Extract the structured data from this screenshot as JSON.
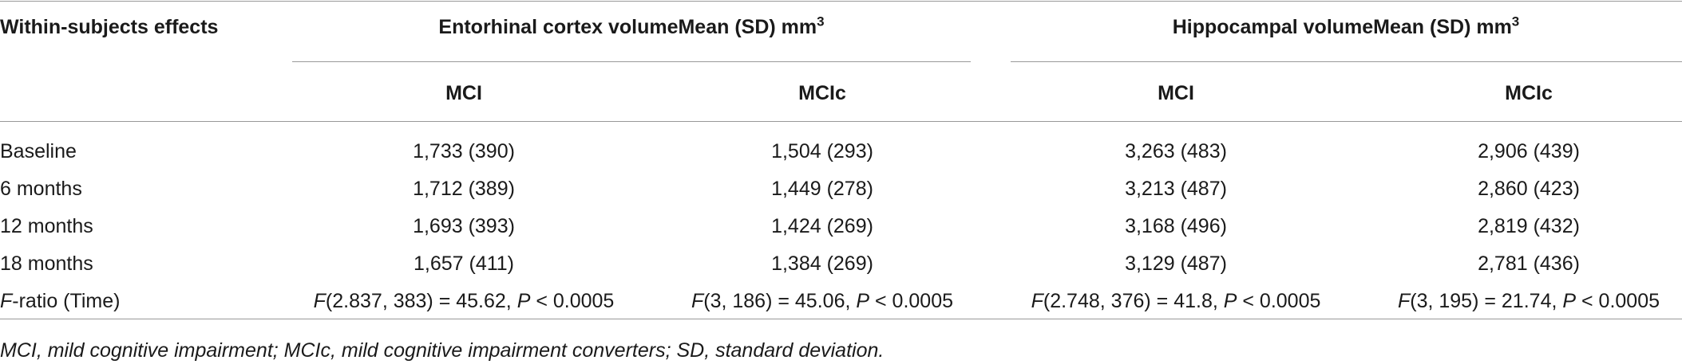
{
  "header": {
    "stub": "Within-subjects effects",
    "groups": [
      {
        "title": "Entorhinal cortex volumeMean (SD) mm",
        "sup": "3",
        "columns": [
          "MCI",
          "MCIc"
        ]
      },
      {
        "title": "Hippocampal volumeMean (SD) mm",
        "sup": "3",
        "columns": [
          "MCI",
          "MCIc"
        ]
      }
    ]
  },
  "table": {
    "rows": [
      {
        "label": [
          "Baseline"
        ],
        "cells": [
          [
            "1,733 (390)"
          ],
          [
            "1,504 (293)"
          ],
          [
            "3,263 (483)"
          ],
          [
            "2,906 (439)"
          ]
        ]
      },
      {
        "label": [
          "6 months"
        ],
        "cells": [
          [
            "1,712 (389)"
          ],
          [
            "1,449 (278)"
          ],
          [
            "3,213 (487)"
          ],
          [
            "2,860 (423)"
          ]
        ]
      },
      {
        "label": [
          "12 months"
        ],
        "cells": [
          [
            "1,693 (393)"
          ],
          [
            "1,424 (269)"
          ],
          [
            "3,168 (496)"
          ],
          [
            "2,819 (432)"
          ]
        ]
      },
      {
        "label": [
          "18 months"
        ],
        "cells": [
          [
            "1,657 (411)"
          ],
          [
            "1,384 (269)"
          ],
          [
            "3,129 (487)"
          ],
          [
            "2,781 (436)"
          ]
        ]
      },
      {
        "label": [
          {
            "text": "F",
            "italic": true
          },
          "-ratio (Time)"
        ],
        "cells": [
          [
            {
              "text": "F",
              "italic": true
            },
            "(2.837, 383) = 45.62, ",
            {
              "text": "P",
              "italic": true
            },
            " < 0.0005"
          ],
          [
            {
              "text": "F",
              "italic": true
            },
            "(3, 186) = 45.06, ",
            {
              "text": "P",
              "italic": true
            },
            " < 0.0005"
          ],
          [
            {
              "text": "F",
              "italic": true
            },
            "(2.748, 376) = 41.8, ",
            {
              "text": "P",
              "italic": true
            },
            " < 0.0005"
          ],
          [
            {
              "text": "F",
              "italic": true
            },
            "(3, 195) = 21.74, ",
            {
              "text": "P",
              "italic": true
            },
            " < 0.0005"
          ]
        ]
      }
    ]
  },
  "footnote": "MCI, mild cognitive impairment; MCIc, mild cognitive impairment converters; SD, standard deviation."
}
